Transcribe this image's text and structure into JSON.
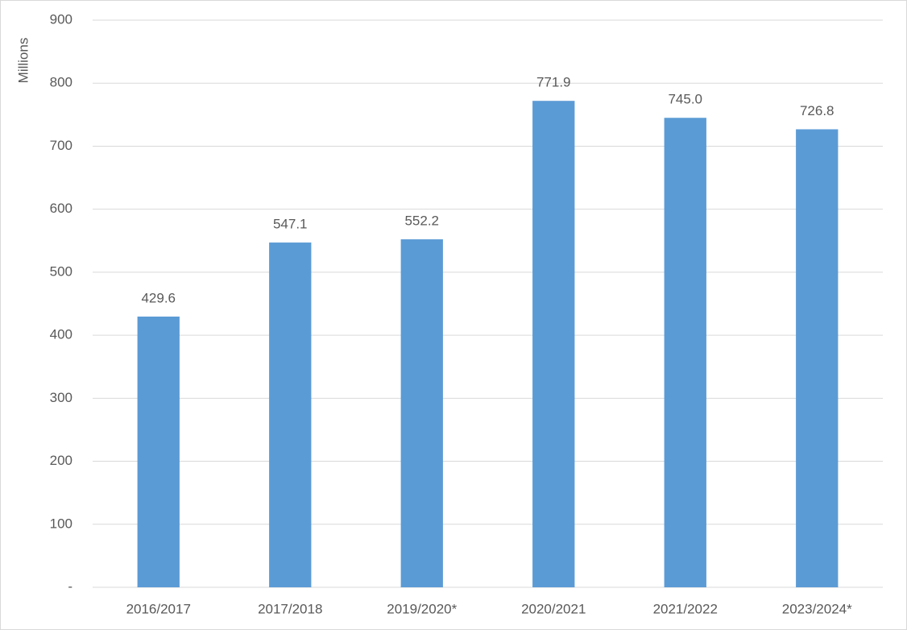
{
  "chart_data": {
    "type": "bar",
    "y_label": "Millions",
    "categories": [
      "2016/2017",
      "2017/2018",
      "2019/2020*",
      "2020/2021",
      "2021/2022",
      "2023/2024*"
    ],
    "values": [
      429.6,
      547.1,
      552.2,
      771.9,
      745.0,
      726.8
    ],
    "value_labels": [
      "429.6",
      "547.1",
      "552.2",
      "771.9",
      "745.0",
      "726.8"
    ],
    "color": "#5b9bd5",
    "ylim": [
      0,
      900
    ],
    "yticks": [
      {
        "value": 0,
        "label": "-"
      },
      100,
      200,
      300,
      400,
      500,
      600,
      700,
      800,
      900
    ],
    "grid": true
  }
}
